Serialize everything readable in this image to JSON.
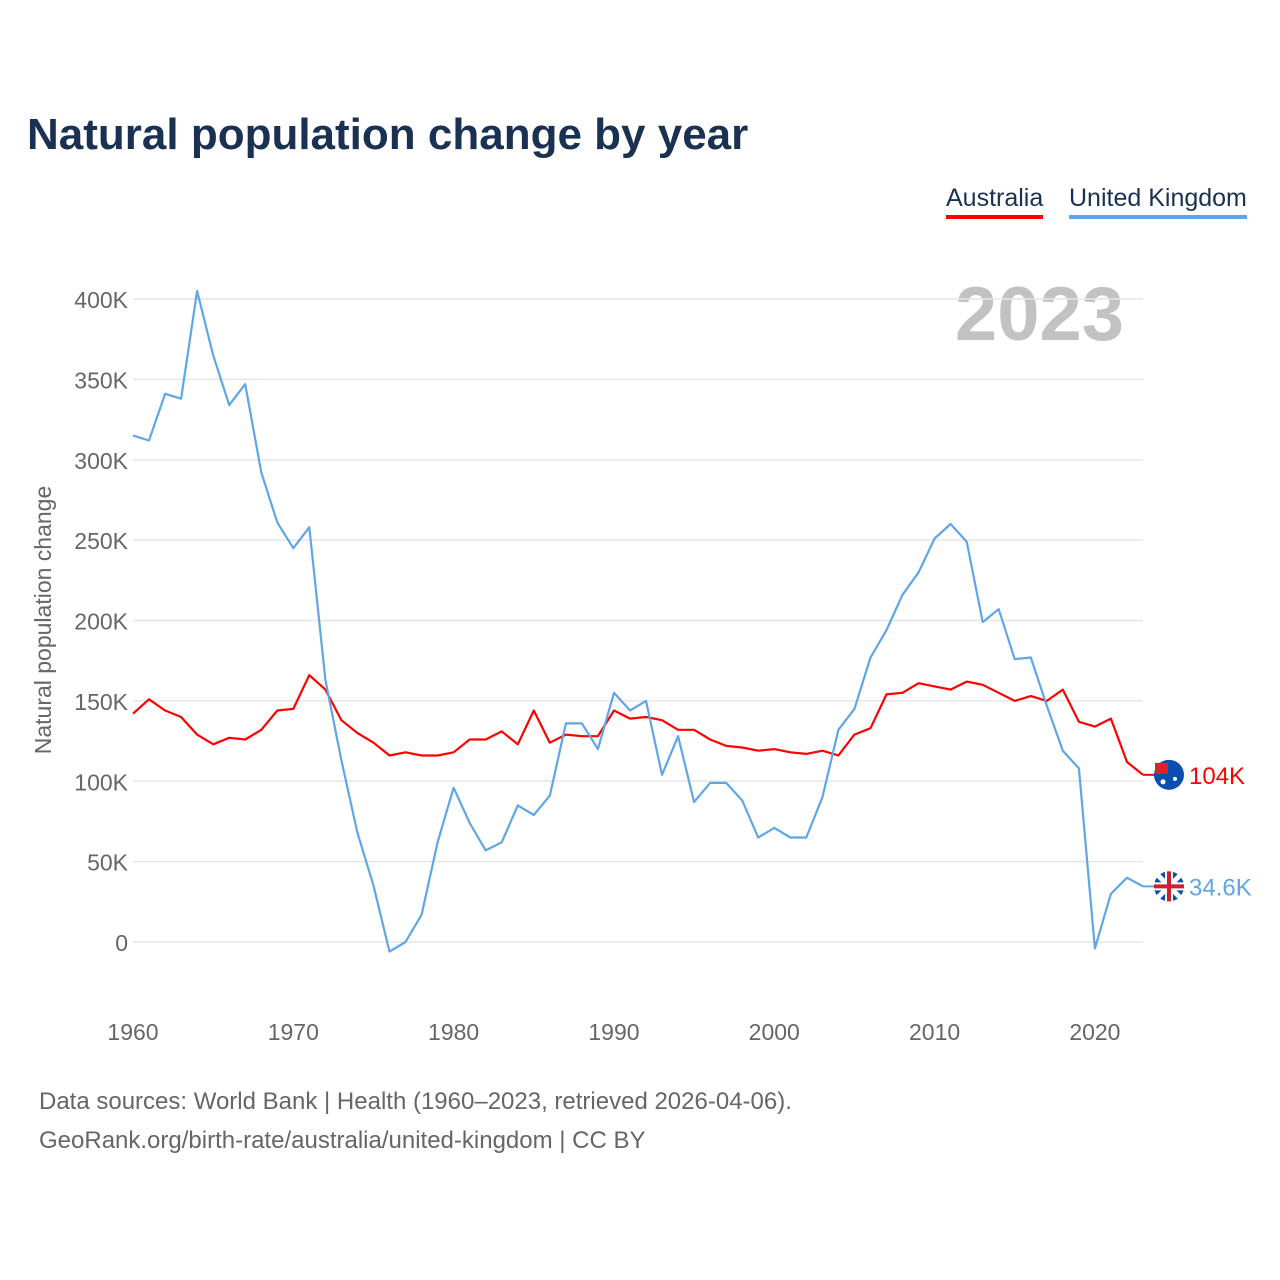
{
  "chart_data": {
    "type": "line",
    "title": "Natural population change by year",
    "xlabel": "",
    "ylabel": "Natural population change",
    "xlim": [
      1960,
      2023
    ],
    "ylim": [
      0,
      400000
    ],
    "x_ticks": [
      "1960",
      "1970",
      "1980",
      "1990",
      "2000",
      "2010",
      "2020"
    ],
    "y_ticks": [
      {
        "v": 0,
        "label": "0"
      },
      {
        "v": 50000,
        "label": "50K"
      },
      {
        "v": 100000,
        "label": "100K"
      },
      {
        "v": 150000,
        "label": "150K"
      },
      {
        "v": 200000,
        "label": "200K"
      },
      {
        "v": 250000,
        "label": "250K"
      },
      {
        "v": 300000,
        "label": "300K"
      },
      {
        "v": 350000,
        "label": "350K"
      },
      {
        "v": 400000,
        "label": "400K"
      }
    ],
    "grid": true,
    "legend_placement": "top-right",
    "year_watermark": "2023",
    "start_year": 1960,
    "series": [
      {
        "name": "Australia",
        "color": "#ff0000",
        "end_label": "104K",
        "flag": "australia-flag",
        "values": [
          142,
          151,
          144,
          140,
          129,
          123,
          127,
          126,
          132,
          144,
          145,
          166,
          157,
          138,
          130,
          124,
          116,
          118,
          116,
          116,
          118,
          126,
          126,
          131,
          123,
          144,
          124,
          129,
          128,
          128,
          144,
          139,
          140,
          138,
          132,
          132,
          126,
          122,
          121,
          119,
          120,
          118,
          117,
          119,
          116,
          129,
          133,
          154,
          155,
          161,
          159,
          157,
          162,
          160,
          155,
          150,
          153,
          150,
          157,
          137,
          134,
          139,
          112,
          104
        ]
      },
      {
        "name": "United Kingdom",
        "color": "#5fa6e8",
        "end_label": "34.6K",
        "flag": "uk-flag",
        "values": [
          315,
          312,
          341,
          338,
          405,
          365,
          334,
          347,
          292,
          261,
          245,
          258,
          163,
          113,
          68,
          35,
          -6,
          0,
          17,
          62,
          96,
          74,
          57,
          62,
          85,
          79,
          91,
          136,
          136,
          120,
          155,
          144,
          150,
          104,
          128,
          87,
          99,
          99,
          88,
          65,
          71,
          65,
          65,
          90,
          132,
          145,
          177,
          194,
          216,
          230,
          251,
          260,
          249,
          199,
          207,
          176,
          177,
          147,
          119,
          108,
          -4,
          30,
          40,
          34.6
        ]
      }
    ],
    "value_unit": "thousands"
  },
  "footer": {
    "line1": "Data sources: World Bank | Health (1960–2023, retrieved 2026-04-06).",
    "line2": "GeoRank.org/birth-rate/australia/united-kingdom | CC BY"
  }
}
